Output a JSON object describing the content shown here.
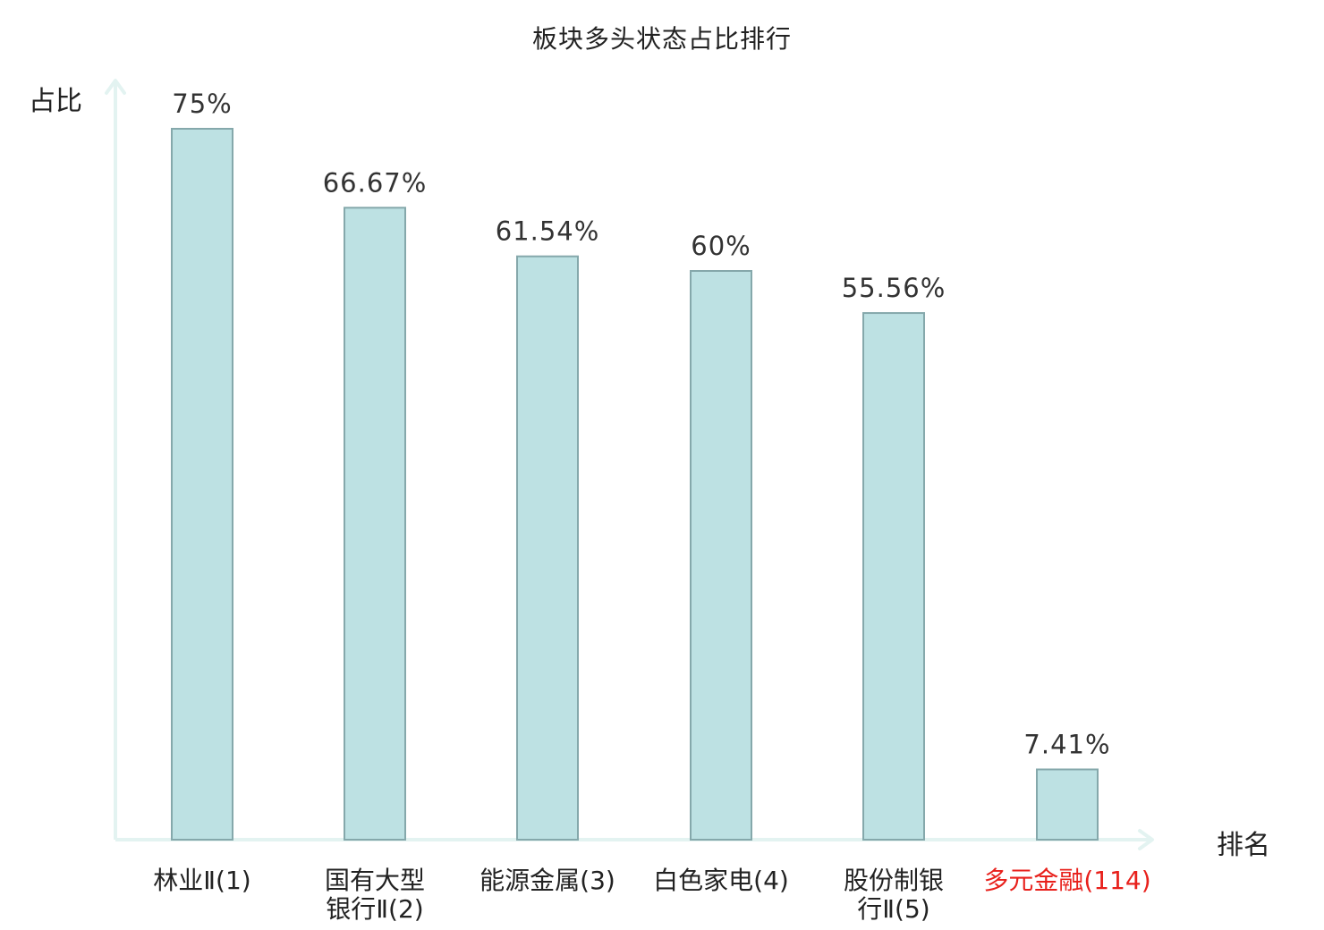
{
  "chart_data": {
    "type": "bar",
    "title": "板块多头状态占比排行",
    "xlabel": "排名",
    "ylabel": "占比",
    "categories": [
      "林业Ⅱ(1)",
      "国有大型银行Ⅱ(2)",
      "能源金属(3)",
      "白色家电(4)",
      "股份制银行Ⅱ(5)",
      "多元金融(114)"
    ],
    "category_lines": [
      [
        "林业Ⅱ(1)"
      ],
      [
        "国有大型",
        "银行Ⅱ(2)"
      ],
      [
        "能源金属(3)"
      ],
      [
        "白色家电(4)"
      ],
      [
        "股份制银",
        "行Ⅱ(5)"
      ],
      [
        "多元金融(114)"
      ]
    ],
    "values": [
      75,
      66.67,
      61.54,
      60,
      55.56,
      7.41
    ],
    "value_labels": [
      "75%",
      "66.67%",
      "61.54%",
      "60%",
      "55.56%",
      "7.41%"
    ],
    "highlight_index": 5,
    "ylim": [
      0,
      80
    ],
    "grid": false,
    "colors": {
      "bar_fill": "#bde1e3",
      "bar_stroke": "#85a8ab",
      "axis": "#e3f3f1",
      "text": "#333333",
      "highlight_text": "#e8201b"
    }
  }
}
